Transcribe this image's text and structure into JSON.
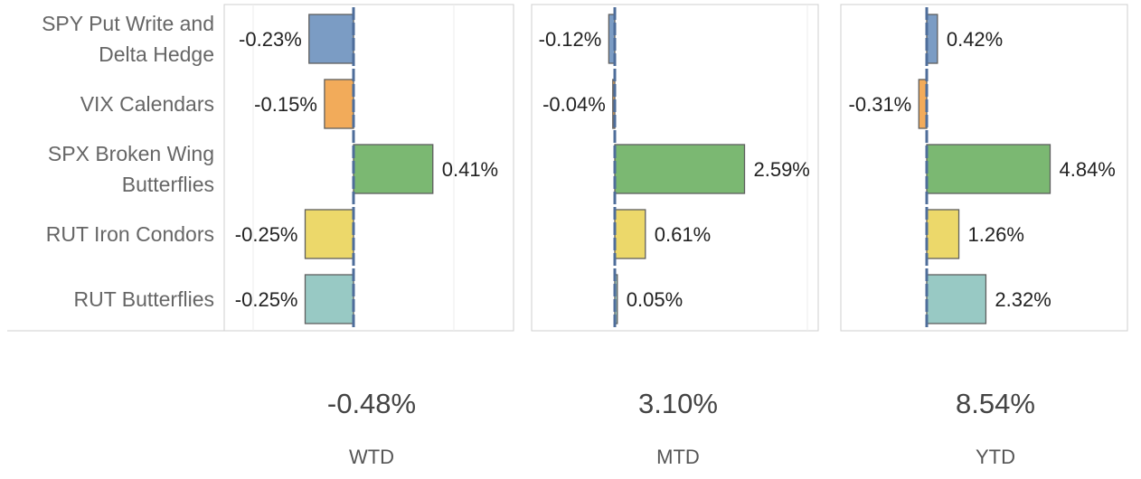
{
  "colors": {
    "spy": "#7b9cc4",
    "vix": "#f2ab5a",
    "spx": "#7bb872",
    "rut_condors": "#ecd86a",
    "rut_butterflies": "#98c9c4",
    "zero_line": "#4e6d9a"
  },
  "chart_data": {
    "type": "bar",
    "orientation": "horizontal",
    "categories": [
      [
        "SPY Put Write and",
        "Delta Hedge"
      ],
      [
        "VIX Calendars"
      ],
      [
        "SPX Broken Wing",
        "Butterflies"
      ],
      [
        "RUT Iron Condors"
      ],
      [
        "RUT Butterflies"
      ]
    ],
    "panels": [
      {
        "values": [
          -0.23,
          -0.15,
          0.41,
          -0.25,
          -0.25
        ],
        "labels": [
          "-0.23%",
          "-0.15%",
          "0.41%",
          "-0.25%",
          "-0.25%"
        ],
        "total": "-0.48%",
        "period": "WTD"
      },
      {
        "values": [
          -0.12,
          -0.04,
          2.59,
          0.61,
          0.05
        ],
        "labels": [
          "-0.12%",
          "-0.04%",
          "2.59%",
          "0.61%",
          "0.05%"
        ],
        "total": "3.10%",
        "period": "MTD"
      },
      {
        "values": [
          0.42,
          -0.31,
          4.84,
          1.26,
          2.32
        ],
        "labels": [
          "0.42%",
          "-0.31%",
          "4.84%",
          "1.26%",
          "2.32%"
        ],
        "total": "8.54%",
        "period": "YTD"
      }
    ]
  }
}
